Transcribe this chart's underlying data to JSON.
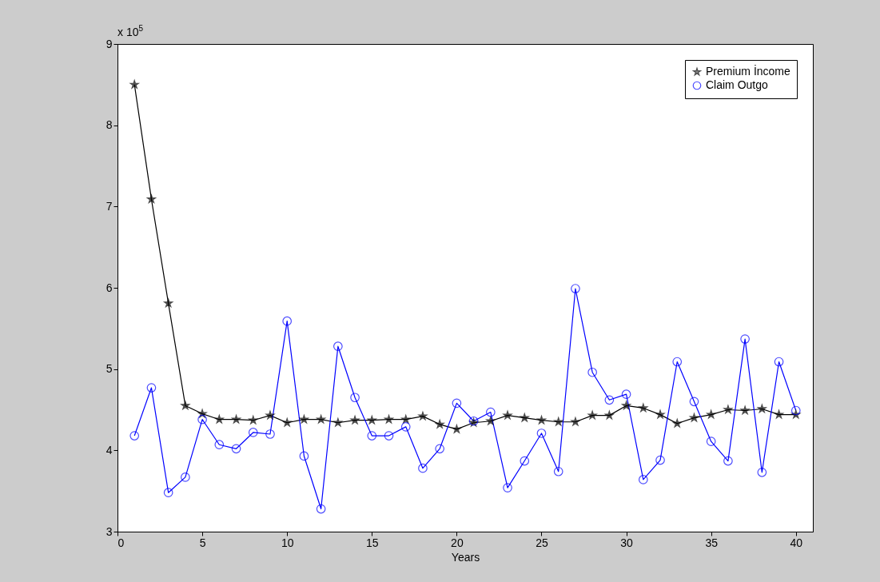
{
  "chart_data": {
    "type": "line",
    "xlabel": "Years",
    "annotations": [
      "x 10$^{5}$"
    ],
    "x": [
      1,
      2,
      3,
      4,
      5,
      6,
      7,
      8,
      9,
      10,
      11,
      12,
      13,
      14,
      15,
      16,
      17,
      18,
      19,
      20,
      21,
      22,
      23,
      24,
      25,
      26,
      27,
      28,
      29,
      30,
      31,
      32,
      33,
      34,
      35,
      36,
      37,
      38,
      39,
      40
    ],
    "series": [
      {
        "name": "Premium İncome",
        "color": "#000000",
        "marker": "star",
        "values": [
          8.5,
          7.09,
          5.81,
          4.55,
          4.45,
          4.38,
          4.38,
          4.37,
          4.43,
          4.34,
          4.38,
          4.38,
          4.34,
          4.37,
          4.37,
          4.38,
          4.38,
          4.42,
          4.32,
          4.26,
          4.34,
          4.36,
          4.43,
          4.4,
          4.37,
          4.35,
          4.35,
          4.43,
          4.43,
          4.55,
          4.52,
          4.44,
          4.33,
          4.4,
          4.44,
          4.5,
          4.49,
          4.51,
          4.44,
          4.44
        ]
      },
      {
        "name": "Claim Outgo",
        "color": "#0000ff",
        "marker": "circle",
        "values": [
          4.18,
          4.77,
          3.48,
          3.67,
          4.38,
          4.07,
          4.02,
          4.22,
          4.2,
          5.59,
          3.93,
          3.28,
          5.28,
          4.65,
          4.18,
          4.18,
          4.29,
          3.78,
          4.02,
          4.58,
          4.36,
          4.47,
          3.54,
          3.87,
          4.21,
          3.74,
          5.99,
          4.96,
          4.62,
          4.69,
          3.64,
          3.88,
          5.09,
          4.6,
          4.11,
          3.87,
          5.37,
          3.73,
          5.09,
          4.49
        ]
      }
    ],
    "xlim": [
      0,
      41
    ],
    "xticks": [
      0,
      5,
      10,
      15,
      20,
      25,
      30,
      35,
      40
    ],
    "ylim": [
      3,
      9
    ],
    "yticks": [
      3,
      4,
      5,
      6,
      7,
      8,
      9
    ],
    "grid": false,
    "legend": "top right",
    "line_style": "solid"
  }
}
